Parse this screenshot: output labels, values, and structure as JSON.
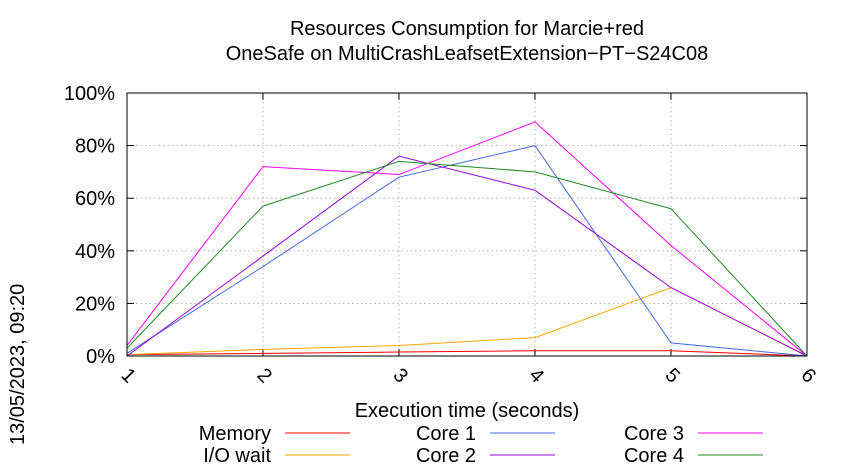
{
  "chart_data": {
    "type": "line",
    "title": [
      "Resources Consumption for Marcie+red",
      "OneSafe on MultiCrashLeafsetExtension−PT−S24C08"
    ],
    "xlabel": "Execution time (seconds)",
    "ylabel": "",
    "side_label": "13/05/2023, 09:20",
    "x": [
      1,
      2,
      3,
      4,
      5,
      6
    ],
    "xticks": [
      "1",
      "2",
      "3",
      "4",
      "5",
      "6"
    ],
    "xlim": [
      1,
      6
    ],
    "ylim": [
      0,
      100
    ],
    "yticks": [
      "0%",
      "20%",
      "40%",
      "60%",
      "80%",
      "100%"
    ],
    "ytick_values": [
      0,
      20,
      40,
      60,
      80,
      100
    ],
    "grid": true,
    "legend_position": "bottom",
    "series": [
      {
        "name": "Memory",
        "color": "#ff0000",
        "values": [
          0.5,
          1,
          1.5,
          2,
          2,
          0
        ]
      },
      {
        "name": "I/O wait",
        "color": "#ffa500",
        "values": [
          0.5,
          2.5,
          4,
          7,
          26,
          0
        ]
      },
      {
        "name": "Core 1",
        "color": "#4169e1",
        "values": [
          1,
          34,
          68,
          80,
          5,
          0
        ]
      },
      {
        "name": "Core 2",
        "color": "#9400d3",
        "values": [
          0,
          38,
          76,
          63,
          26,
          0
        ]
      },
      {
        "name": "Core 3",
        "color": "#ff00ff",
        "values": [
          4,
          72,
          69,
          89,
          42,
          0
        ]
      },
      {
        "name": "Core 4",
        "color": "#228b22",
        "values": [
          3,
          57,
          74,
          70,
          56,
          0
        ]
      }
    ]
  }
}
